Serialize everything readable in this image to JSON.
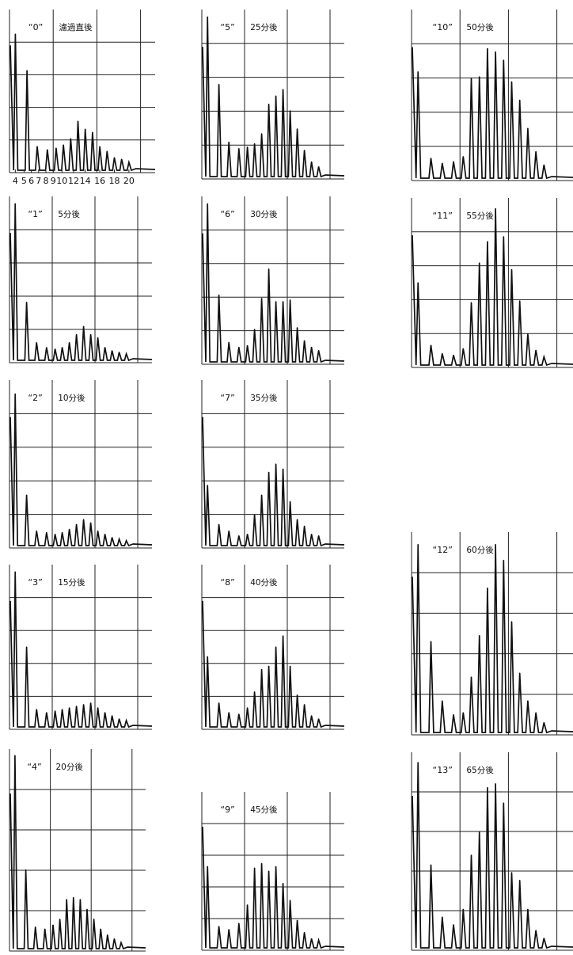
{
  "chart_data": [
    {
      "type": "line",
      "sample_label": "“0”",
      "time_label": "濾過直後",
      "x_tick_labels": [
        "4",
        "5",
        "6",
        "7",
        "8",
        "9",
        "10",
        "12",
        "14",
        "16",
        "18",
        "20"
      ],
      "peaks": [
        0.86,
        0.63,
        0.15,
        0.13,
        0.14,
        0.16,
        0.2,
        0.31,
        0.26,
        0.24,
        0.15,
        0.12,
        0.08,
        0.07,
        0.05
      ]
    },
    {
      "type": "line",
      "sample_label": "“1”",
      "time_label": "5分後",
      "peaks": [
        0.97,
        0.36,
        0.11,
        0.08,
        0.07,
        0.08,
        0.11,
        0.16,
        0.21,
        0.16,
        0.14,
        0.08,
        0.06,
        0.05,
        0.04
      ]
    },
    {
      "type": "line",
      "sample_label": "“2”",
      "time_label": "10分後",
      "peaks": [
        0.93,
        0.31,
        0.09,
        0.08,
        0.07,
        0.08,
        0.1,
        0.13,
        0.16,
        0.14,
        0.09,
        0.07,
        0.05,
        0.04,
        0.03
      ]
    },
    {
      "type": "line",
      "sample_label": "“3”",
      "time_label": "15分後",
      "peaks": [
        0.97,
        0.5,
        0.11,
        0.09,
        0.1,
        0.11,
        0.12,
        0.13,
        0.14,
        0.15,
        0.12,
        0.09,
        0.07,
        0.05,
        0.04
      ]
    },
    {
      "type": "line",
      "sample_label": "“4”",
      "time_label": "20分後",
      "peaks": [
        0.98,
        0.4,
        0.11,
        0.1,
        0.12,
        0.15,
        0.25,
        0.26,
        0.25,
        0.2,
        0.15,
        0.1,
        0.07,
        0.05,
        0.03
      ]
    },
    {
      "type": "line",
      "sample_label": "“5”",
      "time_label": "25分後",
      "peaks": [
        0.97,
        0.56,
        0.21,
        0.17,
        0.18,
        0.2,
        0.26,
        0.44,
        0.49,
        0.53,
        0.4,
        0.29,
        0.16,
        0.09,
        0.06
      ]
    },
    {
      "type": "line",
      "sample_label": "“6”",
      "time_label": "30分後",
      "peaks": [
        0.97,
        0.41,
        0.12,
        0.09,
        0.1,
        0.2,
        0.39,
        0.57,
        0.37,
        0.37,
        0.38,
        0.21,
        0.13,
        0.09,
        0.07
      ]
    },
    {
      "type": "line",
      "sample_label": "“7”",
      "time_label": "35分後",
      "peaks": [
        0.37,
        0.13,
        0.09,
        0.06,
        0.07,
        0.19,
        0.31,
        0.45,
        0.5,
        0.47,
        0.27,
        0.16,
        0.12,
        0.07,
        0.06
      ]
    },
    {
      "type": "line",
      "sample_label": "“8”",
      "time_label": "40分後",
      "peaks": [
        0.44,
        0.15,
        0.09,
        0.08,
        0.12,
        0.22,
        0.36,
        0.38,
        0.5,
        0.57,
        0.38,
        0.2,
        0.14,
        0.07,
        0.05
      ]
    },
    {
      "type": "line",
      "sample_label": "“9”",
      "time_label": "45分後",
      "peaks": [
        0.53,
        0.14,
        0.12,
        0.16,
        0.28,
        0.52,
        0.55,
        0.5,
        0.53,
        0.42,
        0.31,
        0.18,
        0.1,
        0.06,
        0.05
      ]
    },
    {
      "type": "line",
      "sample_label": "“10”",
      "time_label": "50分後",
      "peaks": [
        0.64,
        0.12,
        0.09,
        0.1,
        0.13,
        0.6,
        0.61,
        0.78,
        0.76,
        0.71,
        0.58,
        0.47,
        0.3,
        0.16,
        0.08
      ]
    },
    {
      "type": "line",
      "sample_label": "“11”",
      "time_label": "55分後",
      "peaks": [
        0.5,
        0.12,
        0.07,
        0.06,
        0.1,
        0.38,
        0.62,
        0.75,
        0.95,
        0.78,
        0.58,
        0.39,
        0.19,
        0.09,
        0.05
      ]
    },
    {
      "type": "line",
      "sample_label": "“12”",
      "time_label": "60分後",
      "peaks": [
        0.95,
        0.46,
        0.16,
        0.09,
        0.1,
        0.28,
        0.49,
        0.73,
        0.95,
        0.87,
        0.56,
        0.3,
        0.16,
        0.1,
        0.05
      ]
    },
    {
      "type": "line",
      "sample_label": "“13”",
      "time_label": "65分後",
      "peaks": [
        0.96,
        0.43,
        0.16,
        0.12,
        0.2,
        0.48,
        0.6,
        0.83,
        0.85,
        0.75,
        0.39,
        0.35,
        0.2,
        0.09,
        0.05
      ]
    }
  ]
}
